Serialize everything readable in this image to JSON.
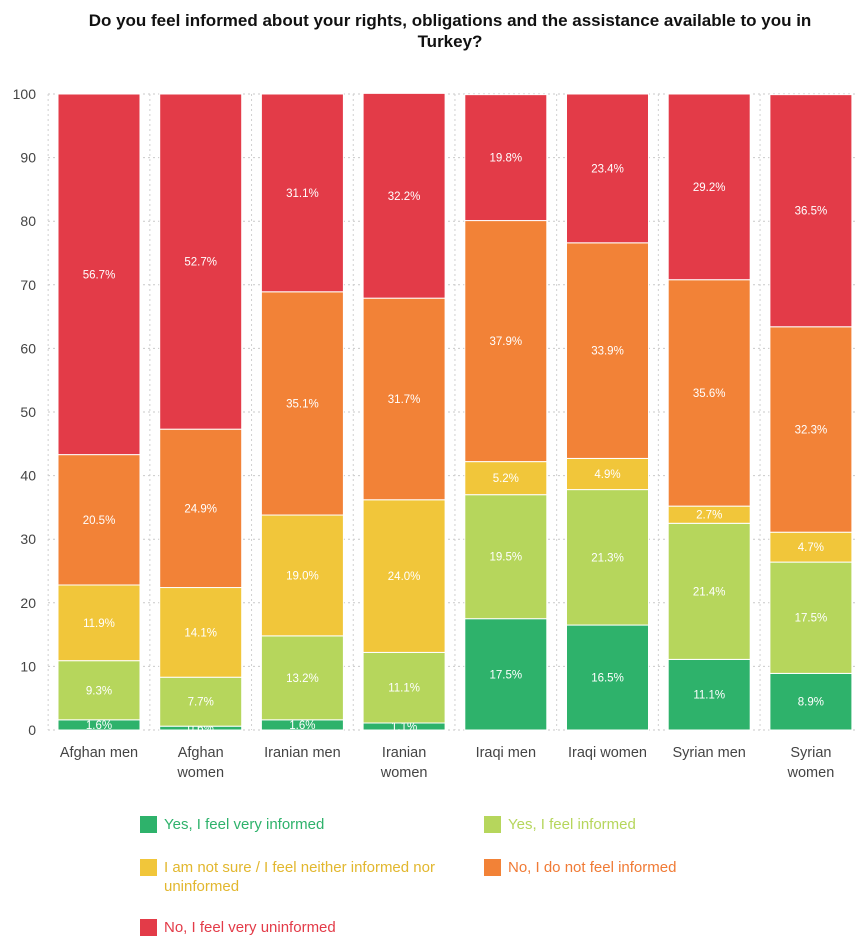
{
  "chart_data": {
    "type": "bar",
    "stacked": true,
    "title": "Do you feel informed about your rights, obligations and the assistance available to you in Turkey?",
    "categories": [
      "Afghan men",
      "Afghan women",
      "Iranian men",
      "Iranian women",
      "Iraqi men",
      "Iraqi women",
      "Syrian men",
      "Syrian women"
    ],
    "ylim": [
      0,
      100
    ],
    "yticks": [
      0,
      10,
      20,
      30,
      40,
      50,
      60,
      70,
      80,
      90,
      100
    ],
    "grid": true,
    "legend_position": "bottom",
    "series": [
      {
        "name": "Yes, I feel very informed",
        "color": "#2eb26b",
        "label_color": "#ffffff",
        "values": [
          1.6,
          0.6,
          1.6,
          1.1,
          17.5,
          16.5,
          11.1,
          8.9
        ],
        "labels": [
          "1.6%",
          "0.6%",
          "1.6%",
          "1.1%",
          "17.5%",
          "16.5%",
          "11.1%",
          "8.9%"
        ]
      },
      {
        "name": "Yes, I feel informed",
        "color": "#b6d65c",
        "label_color": "#ffffff",
        "values": [
          9.3,
          7.7,
          13.2,
          11.1,
          19.5,
          21.3,
          21.4,
          17.5
        ],
        "labels": [
          "9.3%",
          "7.7%",
          "13.2%",
          "11.1%",
          "19.5%",
          "21.3%",
          "21.4%",
          "17.5%"
        ]
      },
      {
        "name": "I am not sure / I feel neither informed nor uninformed",
        "color": "#f1c63a",
        "label_color": "#ffffff",
        "values": [
          11.9,
          14.1,
          19.0,
          24.0,
          5.2,
          4.9,
          2.7,
          4.7
        ],
        "labels": [
          "11.9%",
          "14.1%",
          "19.0%",
          "24.0%",
          "5.2%",
          "4.9%",
          "2.7%",
          "4.7%"
        ]
      },
      {
        "name": "No, I do not feel informed",
        "color": "#f28237",
        "label_color": "#ffffff",
        "values": [
          20.5,
          24.9,
          35.1,
          31.7,
          37.9,
          33.9,
          35.6,
          32.3
        ],
        "labels": [
          "20.5%",
          "24.9%",
          "35.1%",
          "31.7%",
          "37.9%",
          "33.9%",
          "35.6%",
          "32.3%"
        ]
      },
      {
        "name": "No, I feel very uninformed",
        "color": "#e33b48",
        "label_color": "#ffffff",
        "values": [
          56.7,
          52.7,
          31.1,
          32.2,
          19.8,
          23.4,
          29.2,
          36.5
        ],
        "labels": [
          "56.7%",
          "52.7%",
          "31.1%",
          "32.2%",
          "19.8%",
          "23.4%",
          "29.2%",
          "36.5%"
        ]
      }
    ],
    "legend_label_colors": [
      "#2eb26b",
      "#b6d65c",
      "#e2b72e",
      "#f07a35",
      "#e33b48"
    ]
  }
}
